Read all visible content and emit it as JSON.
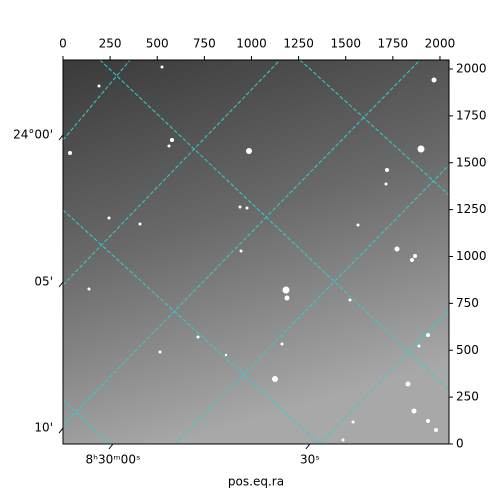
{
  "chart_data": {
    "type": "image",
    "xlabel": "pos.eq.ra",
    "xlim": [
      0,
      2048
    ],
    "ylim": [
      0,
      2048
    ],
    "xticks": [
      0,
      250,
      500,
      750,
      1000,
      1250,
      1500,
      1750,
      2000
    ],
    "yticks": [
      0,
      250,
      500,
      750,
      1000,
      1250,
      1500,
      1750,
      2000
    ],
    "ra_ticks": [
      {
        "value": 265,
        "label": "8ʰ30ᵐ00ˢ"
      },
      {
        "value": 1310,
        "label": "30ˢ"
      }
    ],
    "dec_ticks": [
      {
        "value": 1648,
        "label": "24°00'"
      },
      {
        "value": 864,
        "label": "05'"
      },
      {
        "value": 85,
        "label": "10'"
      }
    ]
  }
}
